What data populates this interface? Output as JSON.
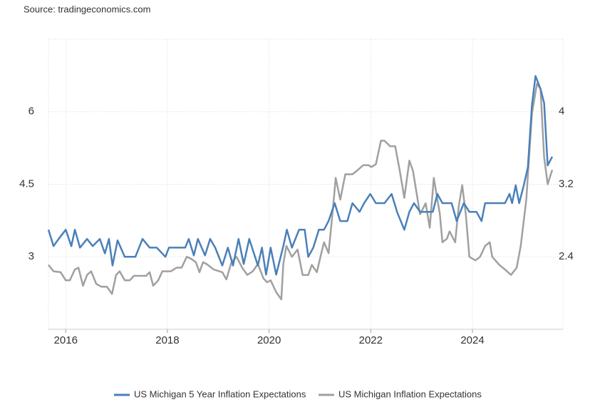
{
  "chart_data": {
    "type": "line",
    "source": "Source: tradingeconomics.com",
    "xlim": [
      2015.66,
      2025.78
    ],
    "xticks": [
      2016,
      2018,
      2020,
      2022,
      2024
    ],
    "ylim": [
      1.5,
      7.5
    ],
    "yticks": [
      3,
      4.5,
      6
    ],
    "y2lim": [
      1.6,
      4.8
    ],
    "y2ticks": [
      2.4,
      3.2,
      4
    ],
    "grid": true,
    "series": [
      {
        "name": "US Michigan 5 Year Inflation Expectations",
        "color": "#4a80b9",
        "axis": "y",
        "x": [
          2015.66,
          2015.76,
          2015.86,
          2016.0,
          2016.11,
          2016.18,
          2016.28,
          2016.42,
          2016.53,
          2016.67,
          2016.77,
          2016.85,
          2016.92,
          2017.02,
          2017.16,
          2017.37,
          2017.51,
          2017.65,
          2017.79,
          2017.96,
          2018.03,
          2018.35,
          2018.42,
          2018.52,
          2018.6,
          2018.74,
          2018.84,
          2018.94,
          2019.08,
          2019.19,
          2019.29,
          2019.4,
          2019.5,
          2019.61,
          2019.78,
          2019.86,
          2019.94,
          2020.03,
          2020.14,
          2020.28,
          2020.35,
          2020.45,
          2020.59,
          2020.7,
          2020.77,
          2020.87,
          2020.98,
          2021.08,
          2021.17,
          2021.29,
          2021.4,
          2021.54,
          2021.64,
          2021.78,
          2021.87,
          2021.99,
          2022.1,
          2022.27,
          2022.41,
          2022.52,
          2022.66,
          2022.76,
          2022.85,
          2022.97,
          2023.11,
          2023.22,
          2023.31,
          2023.41,
          2023.59,
          2023.69,
          2023.83,
          2023.94,
          2024.08,
          2024.18,
          2024.25,
          2024.5,
          2024.64,
          2024.73,
          2024.78,
          2024.85,
          2024.92,
          2025.01,
          2025.09,
          2025.17,
          2025.24,
          2025.34,
          2025.41,
          2025.48,
          2025.57
        ],
        "values": [
          3.56,
          3.22,
          3.37,
          3.56,
          3.22,
          3.56,
          3.19,
          3.37,
          3.22,
          3.37,
          3.07,
          3.37,
          2.82,
          3.34,
          3.0,
          3.0,
          3.37,
          3.19,
          3.19,
          3.0,
          3.19,
          3.19,
          3.37,
          3.03,
          3.37,
          3.03,
          3.37,
          3.19,
          2.82,
          3.19,
          2.82,
          3.37,
          2.85,
          3.37,
          2.82,
          3.19,
          2.63,
          3.19,
          2.63,
          3.22,
          3.56,
          3.19,
          3.56,
          3.56,
          3.0,
          3.19,
          3.56,
          3.56,
          3.74,
          4.11,
          3.74,
          3.74,
          4.11,
          3.93,
          4.11,
          4.3,
          4.11,
          4.11,
          4.3,
          3.92,
          3.56,
          3.93,
          4.11,
          3.93,
          3.93,
          3.93,
          4.3,
          4.11,
          4.11,
          3.74,
          4.11,
          3.93,
          3.93,
          3.74,
          4.11,
          4.11,
          4.11,
          4.3,
          4.11,
          4.48,
          4.11,
          4.48,
          4.85,
          6.13,
          6.74,
          6.47,
          6.18,
          4.89,
          5.07
        ]
      },
      {
        "name": "US Michigan Inflation Expectations",
        "color": "#a0a0a0",
        "axis": "y2",
        "x": [
          2015.66,
          2015.76,
          2015.9,
          2016.0,
          2016.08,
          2016.18,
          2016.25,
          2016.34,
          2016.42,
          2016.5,
          2016.6,
          2016.7,
          2016.81,
          2016.91,
          2016.99,
          2017.06,
          2017.16,
          2017.26,
          2017.34,
          2017.58,
          2017.65,
          2017.72,
          2017.82,
          2017.9,
          2018.07,
          2018.18,
          2018.28,
          2018.38,
          2018.46,
          2018.56,
          2018.63,
          2018.7,
          2018.77,
          2018.91,
          2019.08,
          2019.16,
          2019.26,
          2019.36,
          2019.47,
          2019.57,
          2019.68,
          2019.78,
          2019.89,
          2019.96,
          2020.03,
          2020.14,
          2020.24,
          2020.28,
          2020.34,
          2020.45,
          2020.56,
          2020.66,
          2020.77,
          2020.84,
          2020.94,
          2021.01,
          2021.08,
          2021.17,
          2021.26,
          2021.31,
          2021.4,
          2021.5,
          2021.64,
          2021.73,
          2021.85,
          2021.96,
          2022.01,
          2022.1,
          2022.2,
          2022.27,
          2022.38,
          2022.48,
          2022.57,
          2022.66,
          2022.76,
          2022.83,
          2022.97,
          2023.08,
          2023.16,
          2023.24,
          2023.36,
          2023.41,
          2023.5,
          2023.55,
          2023.66,
          2023.73,
          2023.8,
          2023.87,
          2023.94,
          2024.06,
          2024.15,
          2024.25,
          2024.34,
          2024.39,
          2024.53,
          2024.64,
          2024.76,
          2024.87,
          2024.95,
          2025.06,
          2025.17,
          2025.27,
          2025.34,
          2025.41,
          2025.48,
          2025.57
        ],
        "values": [
          2.31,
          2.24,
          2.23,
          2.14,
          2.14,
          2.26,
          2.28,
          2.08,
          2.2,
          2.24,
          2.1,
          2.07,
          2.07,
          1.99,
          2.2,
          2.24,
          2.14,
          2.14,
          2.19,
          2.19,
          2.23,
          2.08,
          2.14,
          2.24,
          2.24,
          2.28,
          2.28,
          2.4,
          2.38,
          2.34,
          2.23,
          2.34,
          2.32,
          2.26,
          2.23,
          2.15,
          2.34,
          2.4,
          2.28,
          2.2,
          2.24,
          2.32,
          2.16,
          2.12,
          2.14,
          2.01,
          1.93,
          2.32,
          2.52,
          2.4,
          2.48,
          2.2,
          2.2,
          2.31,
          2.23,
          2.4,
          2.56,
          2.44,
          2.95,
          3.27,
          3.03,
          3.31,
          3.31,
          3.35,
          3.41,
          3.41,
          3.39,
          3.42,
          3.68,
          3.68,
          3.62,
          3.62,
          3.35,
          3.05,
          3.46,
          3.35,
          2.87,
          2.99,
          2.72,
          3.27,
          2.87,
          2.56,
          2.6,
          2.68,
          2.56,
          2.95,
          3.19,
          2.87,
          2.4,
          2.36,
          2.4,
          2.52,
          2.56,
          2.4,
          2.31,
          2.26,
          2.2,
          2.28,
          2.52,
          3.03,
          3.98,
          4.31,
          4.25,
          3.5,
          3.2,
          3.36
        ]
      }
    ]
  }
}
